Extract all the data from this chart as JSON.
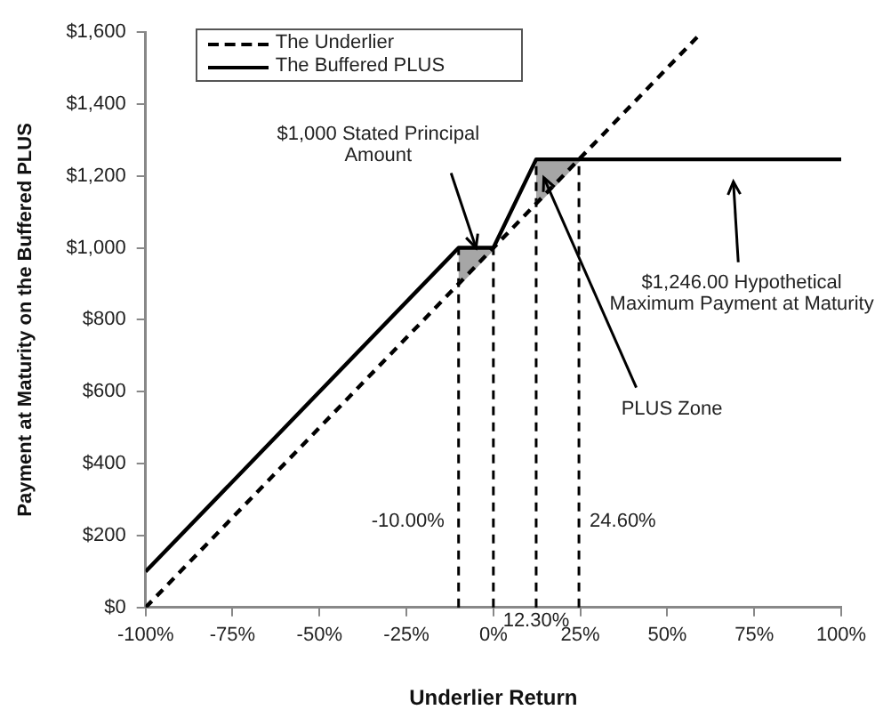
{
  "chart_data": {
    "type": "line",
    "xlabel": "Underlier Return",
    "ylabel": "Payment at Maturity on the Buffered PLUS",
    "xlim": [
      -100,
      100
    ],
    "xticks": [
      {
        "value": -100,
        "label": "-100%"
      },
      {
        "value": -75,
        "label": "-75%"
      },
      {
        "value": -50,
        "label": "-50%"
      },
      {
        "value": -25,
        "label": "-25%"
      },
      {
        "value": 0,
        "label": "0%"
      },
      {
        "value": 25,
        "label": "25%"
      },
      {
        "value": 50,
        "label": "50%"
      },
      {
        "value": 75,
        "label": "75%"
      },
      {
        "value": 100,
        "label": "100%"
      }
    ],
    "ylim": [
      0,
      1600
    ],
    "yticks": [
      {
        "value": 0,
        "label": "$0"
      },
      {
        "value": 200,
        "label": "$200"
      },
      {
        "value": 400,
        "label": "$400"
      },
      {
        "value": 600,
        "label": "$600"
      },
      {
        "value": 800,
        "label": "$800"
      },
      {
        "value": 1000,
        "label": "$1,000"
      },
      {
        "value": 1200,
        "label": "$1,200"
      },
      {
        "value": 1400,
        "label": "$1,400"
      },
      {
        "value": 1600,
        "label": "$1,600"
      }
    ],
    "series": [
      {
        "name": "The Underlier",
        "color": "#000000",
        "line_style": "dashed",
        "x": [
          -100,
          60
        ],
        "values": [
          0,
          1600
        ]
      },
      {
        "name": "The Buffered PLUS",
        "color": "#000000",
        "line_style": "solid",
        "x": [
          -100,
          -10,
          0,
          12.3,
          100
        ],
        "values": [
          100,
          1000,
          1000,
          1246,
          1246
        ]
      },
      {
        "color": "#a6a6a6",
        "x": [
          -10,
          0
        ],
        "values": [
          900,
          1000
        ],
        "lower": [
          900,
          1000
        ],
        "upper": [
          1000,
          1000
        ]
      },
      {
        "color": "#a6a6a6",
        "x": [
          12.3,
          24.6
        ],
        "values": [
          1123,
          1246
        ],
        "lower": [
          1123,
          1246
        ],
        "upper": [
          1246,
          1246
        ]
      }
    ],
    "ref_lines": [
      {
        "axis": "x",
        "value": -10,
        "label": "-10.00%",
        "line_style": "dashed",
        "color": "#000000"
      },
      {
        "axis": "x",
        "value": 0,
        "line_style": "dashed",
        "color": "#000000"
      },
      {
        "axis": "x",
        "value": 12.3,
        "label": "12.30%",
        "line_style": "dashed",
        "color": "#000000"
      },
      {
        "axis": "x",
        "value": 24.6,
        "label": "24.60%",
        "line_style": "dashed",
        "color": "#000000"
      }
    ],
    "annotations": [
      {
        "text": "$1,000 Stated Principal Amount",
        "x": -5,
        "y": 1000
      },
      {
        "text": "PLUS Zone",
        "x": 14.5,
        "y": 1195
      },
      "$1,246.00 Hypothetical Maximum Payment at Maturity"
    ],
    "marker": "none",
    "grid": false,
    "legend": "top left"
  }
}
